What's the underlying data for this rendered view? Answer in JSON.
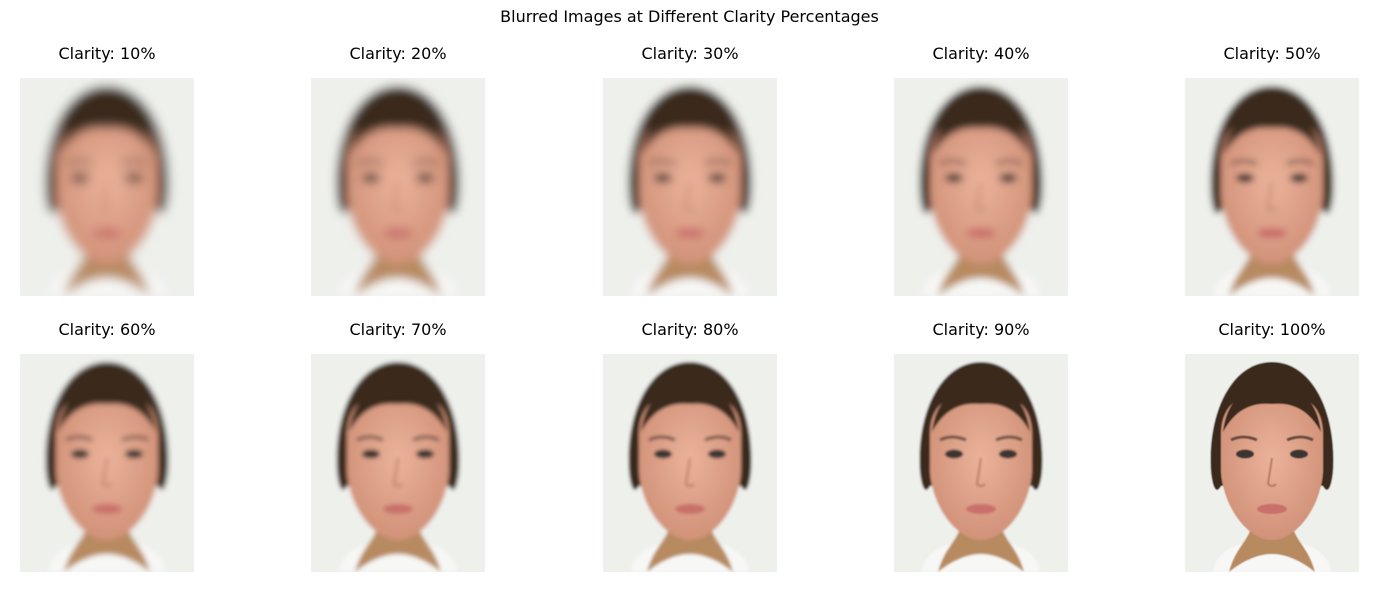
{
  "figure": {
    "title": "Blurred Images at Different Clarity Percentages"
  },
  "panels": [
    {
      "title": "Clarity: 10%",
      "clarity_percent": 10
    },
    {
      "title": "Clarity: 20%",
      "clarity_percent": 20
    },
    {
      "title": "Clarity: 30%",
      "clarity_percent": 30
    },
    {
      "title": "Clarity: 40%",
      "clarity_percent": 40
    },
    {
      "title": "Clarity: 50%",
      "clarity_percent": 50
    },
    {
      "title": "Clarity: 60%",
      "clarity_percent": 60
    },
    {
      "title": "Clarity: 70%",
      "clarity_percent": 70
    },
    {
      "title": "Clarity: 80%",
      "clarity_percent": 80
    },
    {
      "title": "Clarity: 90%",
      "clarity_percent": 90
    },
    {
      "title": "Clarity: 100%",
      "clarity_percent": 100
    }
  ],
  "colors": {
    "background": "#eef0ec",
    "hair": "#3a2a1f",
    "skin": "#e0a48c",
    "neck": "#b88a60",
    "shirt": "#f7f7f5",
    "lips": "#c9706a",
    "eyes": "#3d3430"
  }
}
